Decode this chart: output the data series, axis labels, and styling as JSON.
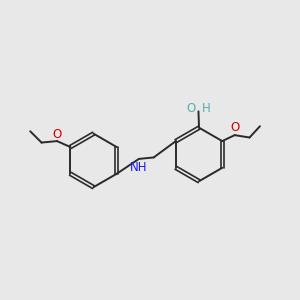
{
  "background_color": "#e8e8e8",
  "bond_color": "#2a2a2a",
  "bond_width": 1.4,
  "colors": {
    "O": "#cc0000",
    "N": "#1a1aee",
    "H_OH": "#5aacac",
    "C": "#2a2a2a"
  },
  "font_size_atom": 8.5,
  "fig_bg": "#e8e8e8",
  "lcx": 3.1,
  "lcy": 5.1,
  "lr": 0.95,
  "rcx": 6.55,
  "rcy": 4.95,
  "rr": 0.95
}
